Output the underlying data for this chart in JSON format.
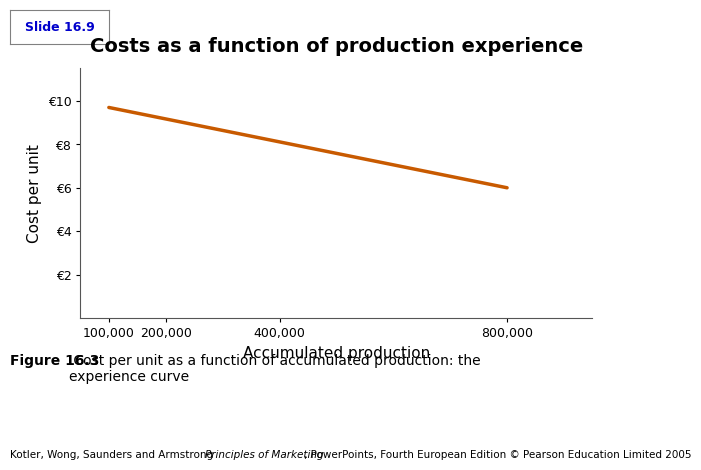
{
  "title": "Costs as a function of production experience",
  "xlabel": "Accumulated production",
  "ylabel": "Cost per unit",
  "line_x": [
    100000,
    800000
  ],
  "line_y": [
    9.7,
    6.0
  ],
  "line_color": "#C85A00",
  "line_width": 2.5,
  "yticks": [
    2,
    4,
    6,
    8,
    10
  ],
  "ytick_labels": [
    "€2",
    "€4",
    "€6",
    "€8",
    "€10"
  ],
  "xticks": [
    100000,
    200000,
    400000,
    800000
  ],
  "xtick_labels": [
    "100,000",
    "200,000",
    "400,000",
    "800,000"
  ],
  "ylim": [
    0,
    11.5
  ],
  "xlim": [
    50000,
    950000
  ],
  "slide_label": "Slide 16.9",
  "slide_label_color": "#0000CC",
  "fig_caption_bold": "Figure 16.3",
  "fig_caption_normal": " Cost per unit as a function of accumulated production: the\nexperience curve",
  "footnote_plain1": "Kotler, Wong, Saunders and Armstrong ",
  "footnote_italic": "Principles of Marketing",
  "footnote_plain2": ", PowerPoints, Fourth European Edition © Pearson Education Limited 2005",
  "background_color": "#FFFFFF",
  "title_fontsize": 14,
  "axis_label_fontsize": 11,
  "tick_fontsize": 9,
  "caption_fontsize": 10,
  "footnote_fontsize": 7.5
}
